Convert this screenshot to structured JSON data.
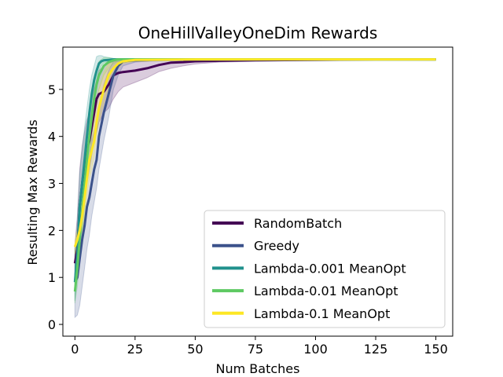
{
  "chart_data": {
    "type": "line",
    "title": "OneHillValleyOneDim Rewards",
    "xlabel": "Num Batches",
    "ylabel": "Resulting Max Rewards",
    "xlim": [
      -5,
      157
    ],
    "ylim": [
      -0.25,
      5.9
    ],
    "xticks": [
      0,
      25,
      50,
      75,
      100,
      125,
      150
    ],
    "yticks": [
      0,
      1,
      2,
      3,
      4,
      5
    ],
    "grid": false,
    "legend_position": "lower-right",
    "series": [
      {
        "name": "RandomBatch",
        "color": "#440154",
        "x": [
          0,
          1,
          2,
          3,
          4,
          5,
          6,
          7,
          8,
          9,
          10,
          12,
          14,
          16,
          18,
          20,
          25,
          30,
          35,
          40,
          45,
          50,
          60,
          75,
          100,
          125,
          150
        ],
        "y": [
          1.3,
          1.6,
          2.5,
          3.0,
          3.4,
          3.7,
          3.9,
          4.2,
          4.5,
          4.8,
          4.9,
          4.95,
          5.1,
          5.3,
          5.35,
          5.37,
          5.4,
          5.45,
          5.52,
          5.57,
          5.58,
          5.6,
          5.61,
          5.62,
          5.63,
          5.64,
          5.64
        ],
        "lower": [
          0.9,
          1.0,
          1.6,
          2.2,
          2.6,
          3.0,
          3.3,
          3.6,
          3.9,
          4.1,
          4.3,
          4.5,
          4.6,
          4.8,
          4.95,
          5.05,
          5.15,
          5.25,
          5.38,
          5.45,
          5.5,
          5.54,
          5.58,
          5.6,
          5.62,
          5.63,
          5.64
        ],
        "upper": [
          1.7,
          2.3,
          3.3,
          3.8,
          4.1,
          4.35,
          4.5,
          4.8,
          5.0,
          5.2,
          5.4,
          5.5,
          5.55,
          5.6,
          5.6,
          5.6,
          5.6,
          5.6,
          5.64,
          5.64,
          5.64,
          5.64,
          5.64,
          5.64,
          5.64,
          5.64,
          5.64
        ]
      },
      {
        "name": "Greedy",
        "color": "#3b528b",
        "x": [
          0,
          1,
          2,
          3,
          4,
          5,
          6,
          7,
          8,
          9,
          10,
          12,
          14,
          16,
          18,
          20,
          25,
          30,
          50,
          75,
          100,
          125,
          150
        ],
        "y": [
          0.9,
          1.0,
          1.4,
          1.8,
          2.1,
          2.5,
          2.7,
          3.0,
          3.3,
          3.5,
          4.0,
          4.5,
          4.9,
          5.3,
          5.5,
          5.6,
          5.62,
          5.63,
          5.64,
          5.64,
          5.64,
          5.64,
          5.64
        ],
        "lower": [
          0.15,
          0.2,
          0.4,
          0.8,
          1.2,
          1.6,
          1.9,
          2.3,
          2.6,
          2.9,
          3.3,
          3.9,
          4.4,
          5.0,
          5.3,
          5.5,
          5.58,
          5.6,
          5.62,
          5.63,
          5.64,
          5.64,
          5.64
        ],
        "upper": [
          1.6,
          1.8,
          2.4,
          2.8,
          3.1,
          3.4,
          3.6,
          3.9,
          4.1,
          4.3,
          4.6,
          5.1,
          5.4,
          5.6,
          5.64,
          5.64,
          5.64,
          5.64,
          5.64,
          5.64,
          5.64,
          5.64,
          5.64
        ]
      },
      {
        "name": "Lambda-0.001 MeanOpt",
        "color": "#21918c",
        "x": [
          0,
          1,
          2,
          3,
          4,
          5,
          6,
          7,
          8,
          9,
          10,
          11,
          12,
          14,
          16,
          20,
          25,
          50,
          75,
          100,
          125,
          150
        ],
        "y": [
          0.9,
          1.5,
          2.5,
          3.0,
          3.5,
          4.0,
          4.5,
          4.9,
          5.2,
          5.4,
          5.55,
          5.6,
          5.62,
          5.63,
          5.64,
          5.64,
          5.64,
          5.64,
          5.64,
          5.64,
          5.64,
          5.64
        ],
        "lower": [
          0.5,
          1.0,
          1.8,
          2.4,
          2.9,
          3.5,
          4.0,
          4.5,
          4.9,
          5.2,
          5.4,
          5.5,
          5.56,
          5.6,
          5.62,
          5.63,
          5.64,
          5.64,
          5.64,
          5.64,
          5.64,
          5.64
        ],
        "upper": [
          1.5,
          2.2,
          3.2,
          3.7,
          4.2,
          4.6,
          5.0,
          5.3,
          5.5,
          5.7,
          5.72,
          5.72,
          5.7,
          5.68,
          5.66,
          5.65,
          5.64,
          5.64,
          5.64,
          5.64,
          5.64,
          5.64
        ]
      },
      {
        "name": "Lambda-0.01 MeanOpt",
        "color": "#5ec962",
        "x": [
          0,
          1,
          2,
          3,
          4,
          5,
          6,
          7,
          8,
          9,
          10,
          12,
          14,
          16,
          18,
          20,
          25,
          50,
          75,
          100,
          125,
          150
        ],
        "y": [
          0.7,
          1.2,
          1.8,
          2.4,
          3.0,
          3.5,
          4.0,
          4.4,
          4.8,
          5.1,
          5.3,
          5.5,
          5.58,
          5.62,
          5.64,
          5.64,
          5.64,
          5.64,
          5.64,
          5.64,
          5.64,
          5.64
        ],
        "lower": [
          0.45,
          0.8,
          1.3,
          1.9,
          2.5,
          3.0,
          3.5,
          4.0,
          4.4,
          4.8,
          5.0,
          5.3,
          5.45,
          5.55,
          5.6,
          5.62,
          5.64,
          5.64,
          5.64,
          5.64,
          5.64,
          5.64
        ],
        "upper": [
          1.1,
          1.7,
          2.4,
          3.0,
          3.6,
          4.1,
          4.5,
          4.9,
          5.2,
          5.45,
          5.6,
          5.68,
          5.68,
          5.66,
          5.65,
          5.64,
          5.64,
          5.64,
          5.64,
          5.64,
          5.64,
          5.64
        ]
      },
      {
        "name": "Lambda-0.1 MeanOpt",
        "color": "#fde725",
        "x": [
          0,
          1,
          2,
          3,
          4,
          5,
          6,
          7,
          8,
          9,
          10,
          12,
          14,
          16,
          18,
          20,
          25,
          50,
          75,
          100,
          125,
          150
        ],
        "y": [
          1.65,
          1.8,
          2.0,
          2.3,
          2.7,
          3.1,
          3.5,
          3.7,
          3.9,
          4.3,
          4.6,
          5.0,
          5.3,
          5.45,
          5.55,
          5.6,
          5.63,
          5.64,
          5.64,
          5.64,
          5.64,
          5.64
        ],
        "lower": [
          1.5,
          1.6,
          1.8,
          2.0,
          2.3,
          2.7,
          3.1,
          3.3,
          3.6,
          4.0,
          4.3,
          4.7,
          5.05,
          5.3,
          5.45,
          5.55,
          5.6,
          5.63,
          5.64,
          5.64,
          5.64,
          5.64
        ],
        "upper": [
          1.8,
          2.0,
          2.3,
          2.7,
          3.1,
          3.6,
          4.0,
          4.2,
          4.3,
          4.7,
          5.0,
          5.35,
          5.55,
          5.62,
          5.64,
          5.65,
          5.65,
          5.64,
          5.64,
          5.64,
          5.64,
          5.64
        ]
      }
    ]
  }
}
